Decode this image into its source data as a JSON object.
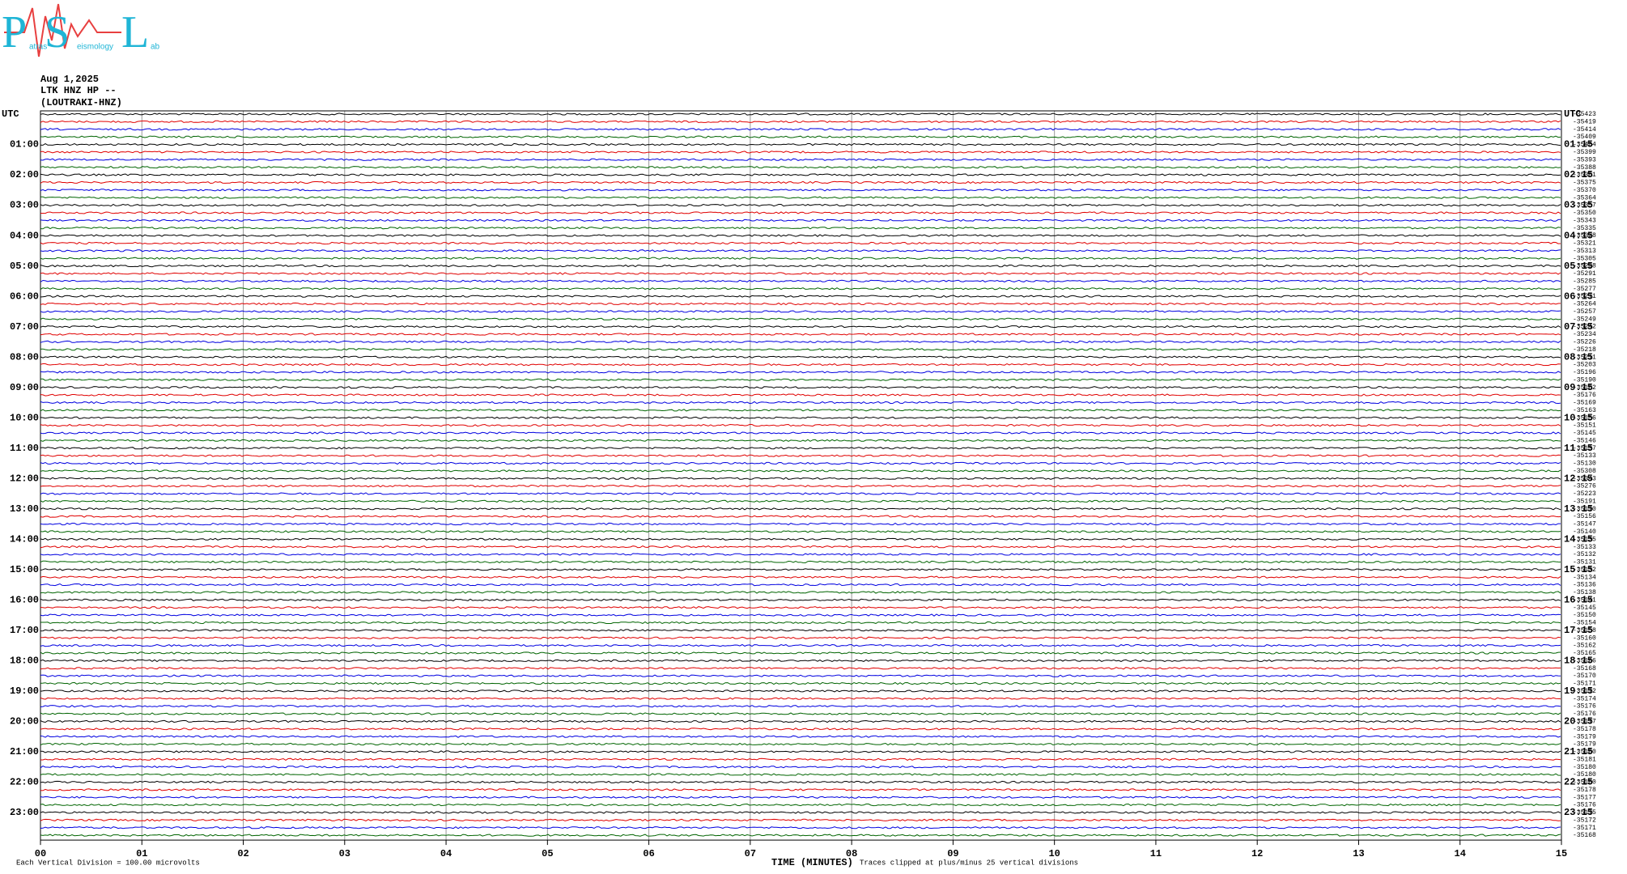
{
  "logo": {
    "letters": [
      "P",
      "S",
      "L"
    ],
    "words": [
      "atras",
      "eismology",
      "ab"
    ]
  },
  "header": {
    "date": "Aug 1,2025",
    "station": "LTK HNZ HP --",
    "site": "(LOUTRAKI-HNZ)"
  },
  "left_labels": [
    "UTC",
    "01:00",
    "02:00",
    "03:00",
    "04:00",
    "05:00",
    "06:00",
    "07:00",
    "08:00",
    "09:00",
    "10:00",
    "11:00",
    "12:00",
    "13:00",
    "14:00",
    "15:00",
    "16:00",
    "17:00",
    "18:00",
    "19:00",
    "20:00",
    "21:00",
    "22:00",
    "23:00"
  ],
  "right_labels": [
    "UTC",
    "01:15",
    "02:15",
    "03:15",
    "04:15",
    "05:15",
    "06:15",
    "07:15",
    "08:15",
    "09:15",
    "10:15",
    "11:15",
    "12:15",
    "13:15",
    "14:15",
    "15:15",
    "16:15",
    "17:15",
    "18:15",
    "19:15",
    "20:15",
    "21:15",
    "22:15",
    "23:15"
  ],
  "trace_offsets": [
    -35423,
    -35419,
    -35414,
    -35409,
    -35404,
    -35399,
    -35393,
    -35388,
    -35381,
    -35375,
    -35370,
    -35364,
    -35357,
    -35350,
    -35343,
    -35335,
    -35328,
    -35321,
    -35313,
    -35305,
    -35298,
    -35291,
    -35285,
    -35277,
    -35271,
    -35264,
    -35257,
    -35249,
    -35242,
    -35234,
    -35226,
    -35218,
    -35211,
    -35203,
    -35196,
    -35190,
    -35182,
    -35176,
    -35169,
    -35163,
    -35156,
    -35151,
    -35145,
    -35146,
    -35137,
    -35133,
    -35130,
    -35308,
    -35343,
    -35276,
    -35223,
    -35191,
    -35170,
    -35156,
    -35147,
    -35140,
    -35135,
    -35133,
    -35132,
    -35131,
    -35132,
    -35134,
    -35136,
    -35138,
    -35141,
    -35145,
    -35150,
    -35154,
    -35158,
    -35160,
    -35162,
    -35165,
    -35166,
    -35168,
    -35170,
    -35171,
    -35172,
    -35174,
    -35176,
    -35176,
    -35177,
    -35178,
    -35179,
    -35179,
    -35180,
    -35181,
    -35180,
    -35180,
    -35180,
    -35178,
    -35177,
    -35176,
    -35175,
    -35172,
    -35171,
    -35168
  ],
  "trace_colors": [
    "#000000",
    "#e00000",
    "#0000e0",
    "#006400"
  ],
  "x_labels": [
    "00",
    "01",
    "02",
    "03",
    "04",
    "05",
    "06",
    "07",
    "08",
    "09",
    "10",
    "11",
    "12",
    "13",
    "14",
    "15"
  ],
  "footer": {
    "division": "Each Vertical Division =  100.00 microvolts",
    "axis_title": "TIME (MINUTES)",
    "clip_note": "Traces clipped at plus/minus 25 vertical divisions"
  }
}
